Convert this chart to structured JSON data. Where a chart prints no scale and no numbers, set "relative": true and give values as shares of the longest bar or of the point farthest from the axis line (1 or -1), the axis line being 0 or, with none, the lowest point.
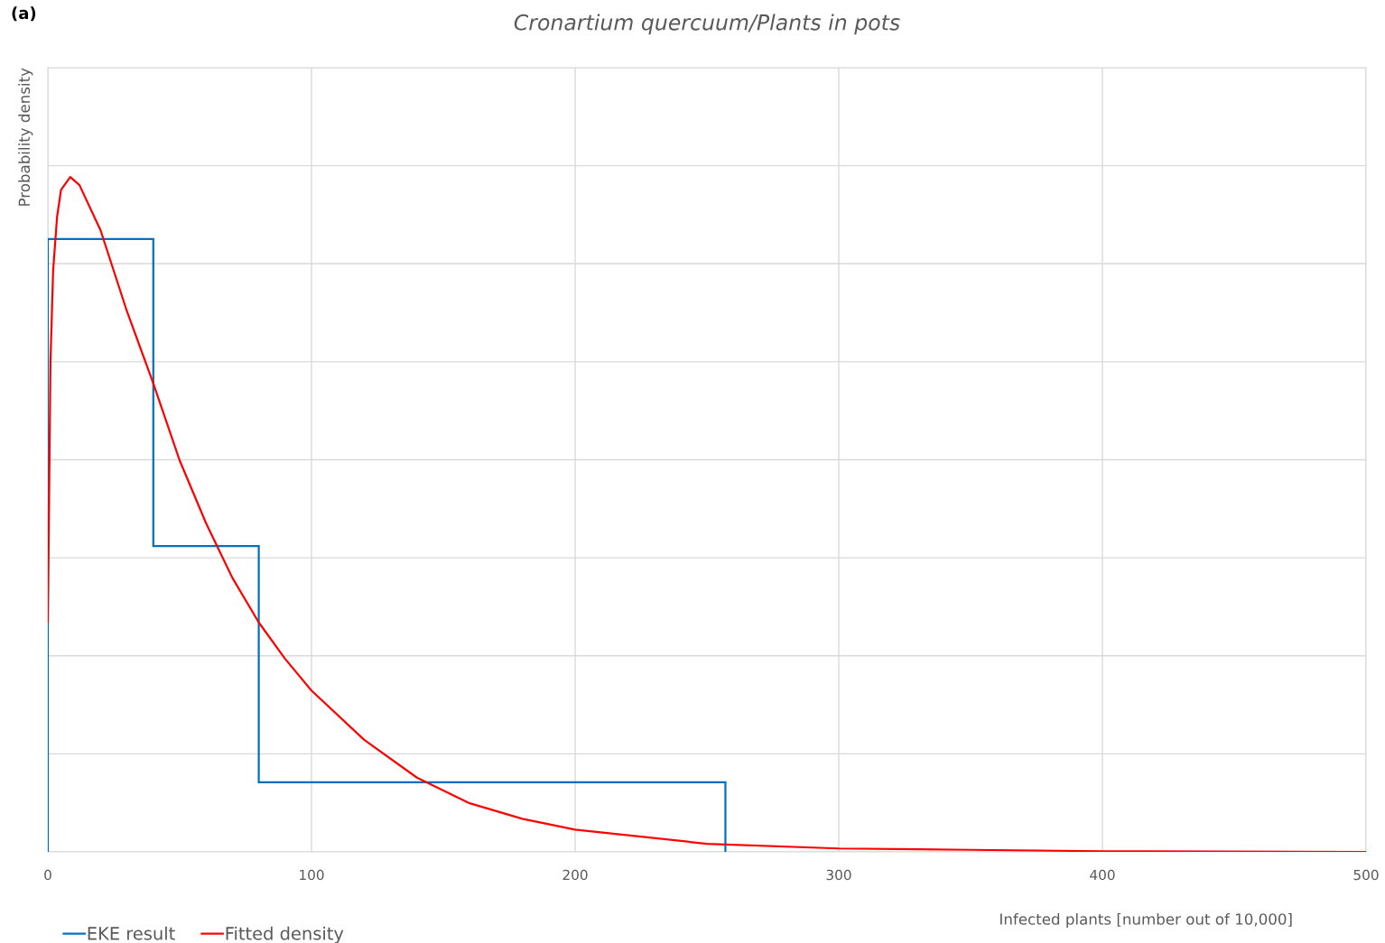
{
  "chart_data": {
    "type": "histogram",
    "title": "Cronartium quercuum/Plants in pots",
    "xlabel": "Infected plants [number out of 10,000]",
    "ylabel": "Probability density",
    "annotations": [
      "(a)"
    ],
    "relative": true,
    "xlim": [
      0,
      500
    ],
    "xticks": [
      0,
      100,
      200,
      300,
      400,
      500
    ],
    "grid": true,
    "legend": "bottom left",
    "bins": [
      0,
      40,
      80,
      257
    ],
    "series": [
      {
        "name": "EKE result",
        "color": "#0070c0",
        "values": [
          0.908,
          0.453,
          0.103
        ]
      },
      {
        "name": "Fitted density",
        "type": "line",
        "color": "#ff0000",
        "x": [
          0,
          1,
          2,
          3.5,
          5,
          8.5,
          12,
          20,
          30,
          40,
          50,
          60,
          70,
          80,
          90,
          100,
          120,
          140,
          160,
          180,
          200,
          250,
          300,
          350,
          400,
          500
        ],
        "values": [
          0.34,
          0.727,
          0.861,
          0.941,
          0.981,
          1,
          0.988,
          0.921,
          0.801,
          0.694,
          0.58,
          0.487,
          0.406,
          0.34,
          0.286,
          0.239,
          0.166,
          0.11,
          0.072,
          0.049,
          0.033,
          0.012,
          0.005,
          0.003,
          0.001,
          0
        ]
      }
    ]
  }
}
